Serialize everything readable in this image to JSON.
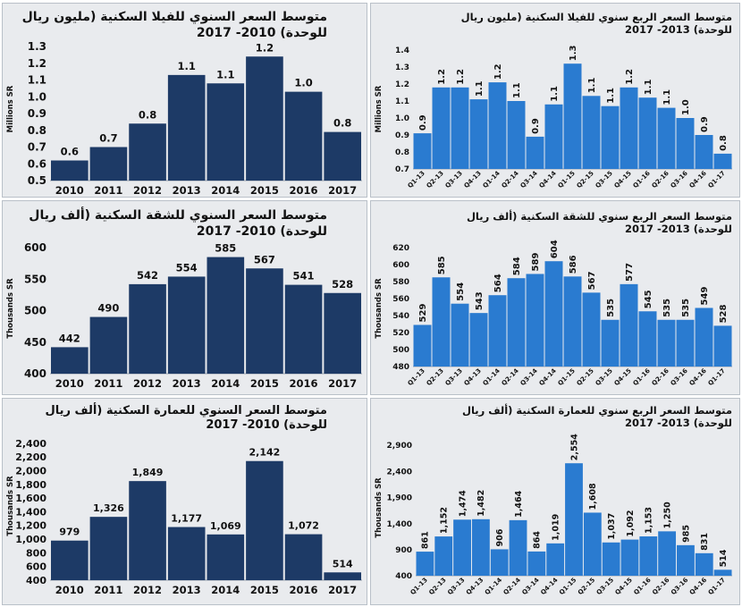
{
  "colors": {
    "annual_bar": "#1d3a66",
    "quarterly_bar": "#2a7bd0",
    "panel_background": "#e9ebee",
    "text": "#111111"
  },
  "charts": [
    {
      "id": "villa-annual",
      "title_line1": "متوسط السعر السنوي للفيلا السكنية (مليون ريال",
      "title_line2": "للوحدة) 2010- 2017",
      "chart_data": {
        "type": "bar",
        "categories": [
          "2010",
          "2011",
          "2012",
          "2013",
          "2014",
          "2015",
          "2016",
          "2017"
        ],
        "values": [
          0.62,
          0.7,
          0.84,
          1.13,
          1.08,
          1.24,
          1.03,
          0.79
        ],
        "data_labels": [
          "0.6",
          "0.7",
          "0.8",
          "1.1",
          "1.1",
          "1.2",
          "1.0",
          "0.8"
        ],
        "ylabel": "Millions SR",
        "ylim": [
          0.5,
          1.3
        ],
        "yticks": [
          "0.5",
          "0.6",
          "0.7",
          "0.8",
          "0.9",
          "1.0",
          "1.1",
          "1.2",
          "1.3"
        ],
        "grid": false,
        "legend": "none"
      }
    },
    {
      "id": "villa-quarterly",
      "title_line1": "متوسط السعر الربع سنوي للفيلا السكنية (مليون ريال",
      "title_line2": "للوحدة) 2013- 2017",
      "chart_data": {
        "type": "bar",
        "categories": [
          "Q1-13",
          "Q2-13",
          "Q3-13",
          "Q4-13",
          "Q1-14",
          "Q2-14",
          "Q3-14",
          "Q4-14",
          "Q1-15",
          "Q2-15",
          "Q3-15",
          "Q4-15",
          "Q1-16",
          "Q2-16",
          "Q3-16",
          "Q4-16",
          "Q1-17"
        ],
        "values": [
          0.91,
          1.18,
          1.18,
          1.11,
          1.21,
          1.1,
          0.89,
          1.08,
          1.32,
          1.13,
          1.07,
          1.18,
          1.12,
          1.06,
          1.0,
          0.9,
          0.79
        ],
        "data_labels": [
          "0.9",
          "1.2",
          "1.2",
          "1.1",
          "1.2",
          "1.1",
          "0.9",
          "1.1",
          "1.3",
          "1.1",
          "1.1",
          "1.2",
          "1.1",
          "1.1",
          "1.0",
          "0.9",
          "0.8"
        ],
        "ylabel": "Millions SR",
        "ylim": [
          0.7,
          1.4
        ],
        "yticks": [
          "0.7",
          "0.8",
          "0.9",
          "1.0",
          "1.1",
          "1.2",
          "1.3",
          "1.4"
        ],
        "grid": false,
        "legend": "none"
      }
    },
    {
      "id": "apartment-annual",
      "title_line1": "متوسط السعر السنوي للشقة السكنية (ألف ريال",
      "title_line2": "للوحدة) 2010- 2017",
      "chart_data": {
        "type": "bar",
        "categories": [
          "2010",
          "2011",
          "2012",
          "2013",
          "2014",
          "2015",
          "2016",
          "2017"
        ],
        "values": [
          442,
          490,
          542,
          554,
          585,
          567,
          541,
          528
        ],
        "data_labels": [
          "442",
          "490",
          "542",
          "554",
          "585",
          "567",
          "541",
          "528"
        ],
        "ylabel": "Thousands SR",
        "ylim": [
          400,
          600
        ],
        "yticks": [
          "400",
          "450",
          "500",
          "550",
          "600"
        ],
        "grid": false,
        "legend": "none"
      }
    },
    {
      "id": "apartment-quarterly",
      "title_line1": "متوسط السعر الربع سنوي للشقة السكنية (ألف ريال",
      "title_line2": "للوحدة) 2013- 2017",
      "chart_data": {
        "type": "bar",
        "categories": [
          "Q1-13",
          "Q2-13",
          "Q3-13",
          "Q4-13",
          "Q1-14",
          "Q2-14",
          "Q3-14",
          "Q4-14",
          "Q1-15",
          "Q2-15",
          "Q3-15",
          "Q4-15",
          "Q1-16",
          "Q2-16",
          "Q3-16",
          "Q4-16",
          "Q1-17"
        ],
        "values": [
          529,
          585,
          554,
          543,
          564,
          584,
          589,
          604,
          586,
          567,
          535,
          577,
          545,
          535,
          535,
          549,
          528
        ],
        "data_labels": [
          "529",
          "585",
          "554",
          "543",
          "564",
          "584",
          "589",
          "604",
          "586",
          "567",
          "535",
          "577",
          "545",
          "535",
          "535",
          "549",
          "528"
        ],
        "ylabel": "Thousands SR",
        "ylim": [
          480,
          620
        ],
        "yticks": [
          "480",
          "500",
          "520",
          "540",
          "560",
          "580",
          "600",
          "620"
        ],
        "grid": false,
        "legend": "none"
      }
    },
    {
      "id": "building-annual",
      "title_line1": "متوسط السعر السنوي للعمارة السكنية (ألف ريال",
      "title_line2": "للوحدة) 2010- 2017",
      "chart_data": {
        "type": "bar",
        "categories": [
          "2010",
          "2011",
          "2012",
          "2013",
          "2014",
          "2015",
          "2016",
          "2017"
        ],
        "values": [
          979,
          1326,
          1849,
          1177,
          1069,
          2142,
          1072,
          514
        ],
        "data_labels": [
          "979",
          "1,326",
          "1,849",
          "1,177",
          "1,069",
          "2,142",
          "1,072",
          "514"
        ],
        "ylabel": "Thousands SR",
        "ylim": [
          400,
          2400
        ],
        "yticks": [
          "400",
          "600",
          "800",
          "1,000",
          "1,200",
          "1,400",
          "1,600",
          "1,800",
          "2,000",
          "2,200",
          "2,400"
        ],
        "grid": false,
        "legend": "none"
      }
    },
    {
      "id": "building-quarterly",
      "title_line1": "متوسط السعر الربع سنوي للعمارة السكنية (ألف ريال",
      "title_line2": "للوحدة) 2013- 2017",
      "chart_data": {
        "type": "bar",
        "categories": [
          "Q1-13",
          "Q2-13",
          "Q3-13",
          "Q4-13",
          "Q1-14",
          "Q2-14",
          "Q3-14",
          "Q4-14",
          "Q1-15",
          "Q2-15",
          "Q3-15",
          "Q4-15",
          "Q1-16",
          "Q2-16",
          "Q3-16",
          "Q4-16",
          "Q1-17"
        ],
        "values": [
          861,
          1152,
          1474,
          1482,
          906,
          1464,
          864,
          1019,
          2554,
          1608,
          1037,
          1092,
          1153,
          1250,
          985,
          831,
          514
        ],
        "data_labels": [
          "861",
          "1,152",
          "1,474",
          "1,482",
          "906",
          "1,464",
          "864",
          "1,019",
          "2,554",
          "1,608",
          "1,037",
          "1,092",
          "1,153",
          "1,250",
          "985",
          "831",
          "514"
        ],
        "ylabel": "Thousands SR",
        "ylim": [
          400,
          2900
        ],
        "yticks": [
          "400",
          "900",
          "1,400",
          "1,900",
          "2,400",
          "2,900"
        ],
        "grid": false,
        "legend": "none"
      }
    }
  ]
}
